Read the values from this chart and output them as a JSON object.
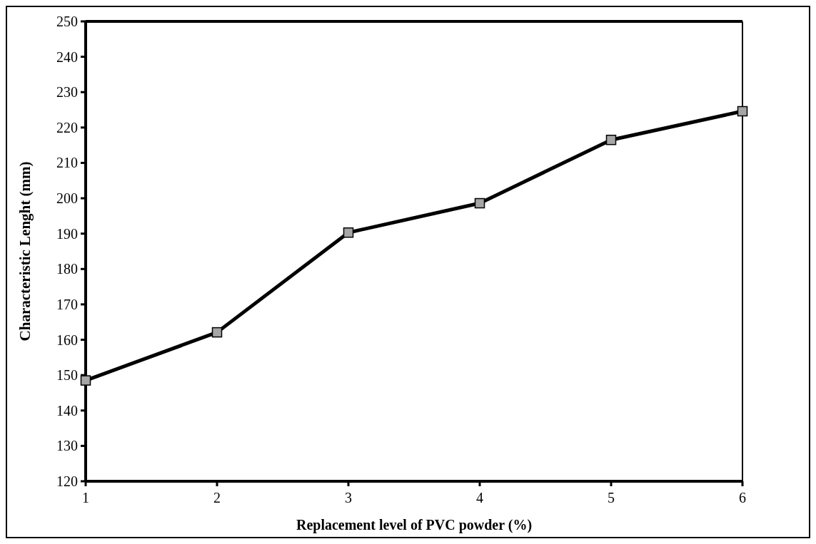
{
  "chart_data": {
    "type": "line",
    "xlabel": "Replacement level of PVC powder (%)",
    "ylabel": "Characteristic Lenght (mm)",
    "x": [
      1,
      2,
      3,
      4,
      5,
      6
    ],
    "series": [
      {
        "color": "#000000",
        "values": [
          148.5,
          162.1,
          190.3,
          198.6,
          216.5,
          224.6
        ]
      }
    ],
    "xlim": [
      1,
      6
    ],
    "xticks": [
      1,
      2,
      3,
      4,
      5,
      6
    ],
    "ylim": [
      120,
      250
    ],
    "yticks": [
      120,
      130,
      140,
      150,
      160,
      170,
      180,
      190,
      200,
      210,
      220,
      230,
      240,
      250
    ],
    "marker": "square",
    "line_style": "solid"
  }
}
